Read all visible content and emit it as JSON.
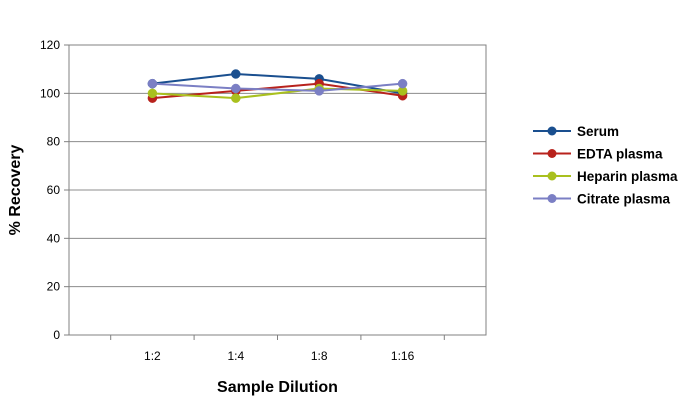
{
  "chart_data": {
    "type": "line",
    "title": "",
    "xlabel": "Sample Dilution",
    "ylabel": "% Recovery",
    "categories": [
      "1:2",
      "1:4",
      "1:8",
      "1:16"
    ],
    "ylim": [
      0,
      120
    ],
    "yticks": [
      0,
      20,
      40,
      60,
      80,
      100,
      120
    ],
    "grid": "horizontal",
    "legend_position": "right",
    "series": [
      {
        "name": "Serum",
        "color": "#1a4f8f",
        "values": [
          104,
          108,
          106,
          100
        ]
      },
      {
        "name": "EDTA plasma",
        "color": "#b8221c",
        "values": [
          98,
          101,
          104,
          99
        ]
      },
      {
        "name": "Heparin plasma",
        "color": "#a9c01e",
        "values": [
          100,
          98,
          102,
          101
        ]
      },
      {
        "name": "Citrate plasma",
        "color": "#7b7fc4",
        "values": [
          104,
          102,
          101,
          104
        ]
      }
    ]
  }
}
